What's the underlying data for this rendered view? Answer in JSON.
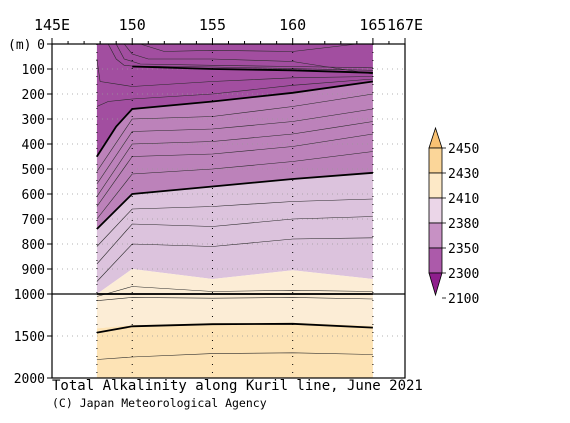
{
  "chart_data": {
    "type": "contour",
    "title": "Total Alkalinity along Kuril line, June 2021",
    "credit": "(C) Japan Meteorological Agency",
    "x_unit_suffix": "E",
    "x_range": [
      145,
      167
    ],
    "x_ticks": [
      "145E",
      "150",
      "155",
      "160",
      "165",
      "167E"
    ],
    "x_tick_values": [
      145,
      150,
      155,
      160,
      165,
      167
    ],
    "y_unit_label": "(m)",
    "y_upper_ticks": [
      "0",
      "100",
      "200",
      "300",
      "400",
      "500",
      "600",
      "700",
      "800",
      "900",
      "1000"
    ],
    "y_upper_values": [
      0,
      100,
      200,
      300,
      400,
      500,
      600,
      700,
      800,
      900,
      1000
    ],
    "y_lower_ticks": [
      "1500",
      "2000"
    ],
    "y_lower_values": [
      1500,
      2000
    ],
    "y_range": [
      0,
      2000
    ],
    "y_break": 1000,
    "section_x_range": [
      147.8,
      165
    ],
    "station_longitudes": [
      147.8,
      150,
      155,
      160,
      165
    ],
    "legend": {
      "labels": [
        "2450",
        "2430",
        "2410",
        "2380",
        "2350",
        "2300",
        "2100"
      ],
      "values": [
        2450,
        2430,
        2410,
        2380,
        2350,
        2300,
        2100
      ],
      "colors": [
        "#f9c273",
        "#fbd699",
        "#fde9c7",
        "#ebd6e8",
        "#c791c4",
        "#ac5aaa",
        "#8e1e8c"
      ]
    },
    "fill_bands": [
      {
        "name": "band-2100-2300",
        "color": "#a24ea0",
        "top_poly": [
          [
            147.8,
            0
          ],
          [
            150,
            0
          ],
          [
            155,
            0
          ],
          [
            160,
            0
          ],
          [
            165,
            0
          ]
        ],
        "bottom_poly": [
          [
            147.8,
            450
          ],
          [
            149,
            330
          ],
          [
            150,
            260
          ],
          [
            155,
            230
          ],
          [
            160,
            195
          ],
          [
            165,
            150
          ]
        ]
      },
      {
        "name": "band-2300-2350",
        "color": "#bc82ba",
        "top_poly": [
          [
            147.8,
            450
          ],
          [
            149,
            330
          ],
          [
            150,
            260
          ],
          [
            155,
            230
          ],
          [
            160,
            195
          ],
          [
            165,
            150
          ]
        ],
        "bottom_poly": [
          [
            147.8,
            740
          ],
          [
            150,
            600
          ],
          [
            155,
            570
          ],
          [
            160,
            540
          ],
          [
            165,
            515
          ]
        ]
      },
      {
        "name": "band-2350-2380",
        "color": "#dcc3dd",
        "top_poly": [
          [
            147.8,
            740
          ],
          [
            150,
            600
          ],
          [
            155,
            570
          ],
          [
            160,
            540
          ],
          [
            165,
            515
          ]
        ],
        "bottom_poly": [
          [
            147.8,
            1000
          ],
          [
            150,
            900
          ],
          [
            155,
            940
          ],
          [
            160,
            905
          ],
          [
            165,
            940
          ]
        ]
      },
      {
        "name": "band-2380-2410",
        "color": "#fcedd6",
        "top_poly": [
          [
            147.8,
            1000
          ],
          [
            150,
            900
          ],
          [
            155,
            940
          ],
          [
            160,
            905
          ],
          [
            165,
            940
          ]
        ],
        "bottom_poly": [
          [
            147.8,
            1410
          ],
          [
            150,
            1370
          ],
          [
            155,
            1345
          ],
          [
            160,
            1340
          ],
          [
            165,
            1380
          ]
        ]
      },
      {
        "name": "band-2410-2430",
        "color": "#fde3b5",
        "top_poly": [
          [
            147.8,
            1410
          ],
          [
            150,
            1370
          ],
          [
            155,
            1345
          ],
          [
            160,
            1340
          ],
          [
            165,
            1380
          ]
        ],
        "bottom_poly": [
          [
            147.8,
            2000
          ],
          [
            150,
            2000
          ],
          [
            155,
            2000
          ],
          [
            160,
            2000
          ],
          [
            165,
            2000
          ]
        ]
      }
    ],
    "thick_contours": [
      [
        [
          150,
          90
        ],
        [
          155,
          100
        ],
        [
          160,
          105
        ],
        [
          165,
          115
        ]
      ],
      [
        [
          147.8,
          450
        ],
        [
          149,
          330
        ],
        [
          150,
          260
        ],
        [
          155,
          230
        ],
        [
          160,
          195
        ],
        [
          165,
          150
        ]
      ],
      [
        [
          147.8,
          740
        ],
        [
          150,
          600
        ],
        [
          155,
          570
        ],
        [
          160,
          540
        ],
        [
          165,
          515
        ]
      ],
      [
        [
          147.8,
          1000
        ],
        [
          165,
          1000
        ]
      ],
      [
        [
          147.8,
          1460
        ],
        [
          150,
          1385
        ],
        [
          155,
          1360
        ],
        [
          160,
          1355
        ],
        [
          165,
          1400
        ]
      ]
    ],
    "thin_contours": [
      [
        [
          149,
          0
        ],
        [
          149.5,
          60
        ],
        [
          150.5,
          80
        ],
        [
          155,
          85
        ],
        [
          160,
          90
        ],
        [
          165,
          95
        ]
      ],
      [
        [
          148.5,
          0
        ],
        [
          149,
          60
        ],
        [
          149.5,
          85
        ],
        [
          150,
          88
        ],
        [
          155,
          92
        ],
        [
          165,
          105
        ]
      ],
      [
        [
          149.5,
          0
        ],
        [
          150,
          40
        ],
        [
          151,
          60
        ],
        [
          155,
          60
        ],
        [
          160,
          70
        ],
        [
          165,
          120
        ]
      ],
      [
        [
          150.5,
          0
        ],
        [
          152,
          30
        ],
        [
          155,
          25
        ],
        [
          160,
          30
        ],
        [
          164,
          0
        ]
      ],
      [
        [
          147.8,
          60
        ],
        [
          148,
          150
        ],
        [
          150,
          170
        ],
        [
          155,
          150
        ],
        [
          160,
          135
        ],
        [
          165,
          130
        ]
      ],
      [
        [
          147.8,
          250
        ],
        [
          148.5,
          230
        ],
        [
          150,
          220
        ],
        [
          155,
          200
        ],
        [
          160,
          165
        ],
        [
          165,
          140
        ]
      ],
      [
        [
          147.8,
          510
        ],
        [
          150,
          300
        ],
        [
          155,
          290
        ],
        [
          160,
          250
        ],
        [
          165,
          200
        ]
      ],
      [
        [
          147.8,
          560
        ],
        [
          150,
          350
        ],
        [
          155,
          340
        ],
        [
          160,
          310
        ],
        [
          165,
          260
        ]
      ],
      [
        [
          147.8,
          610
        ],
        [
          150,
          400
        ],
        [
          155,
          390
        ],
        [
          160,
          360
        ],
        [
          165,
          310
        ]
      ],
      [
        [
          147.8,
          650
        ],
        [
          150,
          450
        ],
        [
          155,
          440
        ],
        [
          160,
          410
        ],
        [
          165,
          360
        ]
      ],
      [
        [
          147.8,
          700
        ],
        [
          150,
          520
        ],
        [
          155,
          500
        ],
        [
          160,
          470
        ],
        [
          165,
          430
        ]
      ],
      [
        [
          147.8,
          810
        ],
        [
          150,
          660
        ],
        [
          155,
          650
        ],
        [
          160,
          630
        ],
        [
          165,
          620
        ]
      ],
      [
        [
          147.8,
          880
        ],
        [
          150,
          720
        ],
        [
          155,
          730
        ],
        [
          160,
          700
        ],
        [
          165,
          690
        ]
      ],
      [
        [
          147.8,
          950
        ],
        [
          150,
          800
        ],
        [
          155,
          810
        ],
        [
          160,
          780
        ],
        [
          165,
          775
        ]
      ],
      [
        [
          147.8,
          1030
        ],
        [
          150,
          970
        ],
        [
          155,
          990
        ],
        [
          160,
          985
        ],
        [
          165,
          990
        ]
      ],
      [
        [
          147.8,
          1080
        ],
        [
          150,
          1040
        ],
        [
          155,
          1050
        ],
        [
          160,
          1040
        ],
        [
          165,
          1060
        ]
      ],
      [
        [
          147.8,
          1780
        ],
        [
          150,
          1750
        ],
        [
          155,
          1710
        ],
        [
          160,
          1700
        ],
        [
          165,
          1720
        ]
      ]
    ]
  }
}
